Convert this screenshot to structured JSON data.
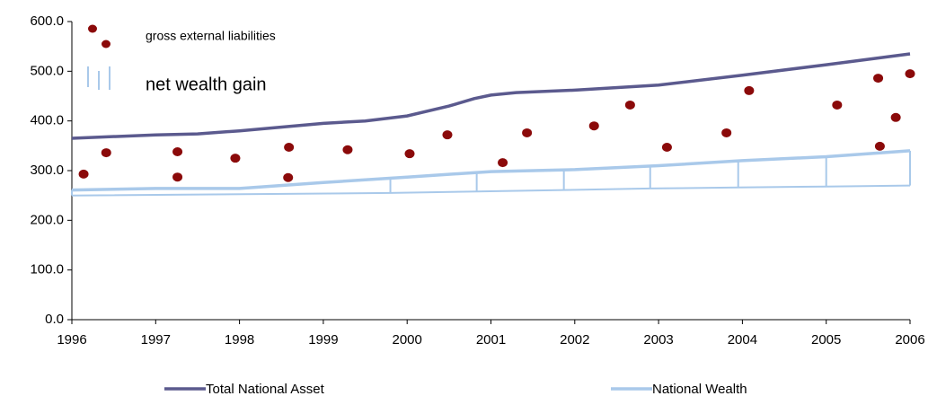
{
  "chart_data": {
    "type": "line",
    "xlim": [
      1996,
      2006
    ],
    "xticks": [
      1996,
      1997,
      1998,
      1999,
      2000,
      2001,
      2002,
      2003,
      2004,
      2005,
      2006
    ],
    "ylim": [
      0,
      600
    ],
    "yticks": [
      {
        "value": 0,
        "label": "0.0"
      },
      {
        "value": 100,
        "label": "100.0"
      },
      {
        "value": 200,
        "label": "200.0"
      },
      {
        "value": 300,
        "label": "300.0"
      },
      {
        "value": 400,
        "label": "400.0"
      },
      {
        "value": 500,
        "label": "500.0"
      },
      {
        "value": 600,
        "label": "600.0"
      }
    ],
    "grid": false,
    "series": [
      {
        "name": "Total National Asset",
        "mark": "line",
        "color": "#5b5a8e",
        "legend": "bottom",
        "x": [
          1996,
          1997,
          1997.5,
          1998,
          1999,
          1999.5,
          2000,
          2000.5,
          2000.8,
          2001,
          2001.3,
          2002,
          2003,
          2004,
          2005,
          2006
        ],
        "values": [
          365,
          372,
          374,
          380,
          395,
          400,
          410,
          430,
          445,
          452,
          457,
          462,
          472,
          492,
          513,
          535
        ]
      },
      {
        "name": "National Wealth",
        "mark": "line",
        "color": "#a9c9ea",
        "legend": "bottom",
        "x": [
          1996,
          1997,
          1998,
          1999,
          2000,
          2001,
          2002,
          2003,
          2004,
          2005,
          2006
        ],
        "values": [
          261,
          264,
          264,
          276,
          287,
          298,
          302,
          310,
          320,
          328,
          340
        ]
      },
      {
        "name": "gross external liabilities",
        "mark": "scatter",
        "color": "#8b0a0a",
        "legend": "top-left",
        "x": [
          1996.14,
          1996.41,
          1997.26,
          1997.26,
          1997.95,
          1998.59,
          1998.58,
          1999.29,
          2000.03,
          2000.48,
          2001.14,
          2001.43,
          2002.23,
          2002.66,
          2003.1,
          2003.81,
          2004.08,
          2005.13,
          2005.64,
          2005.62,
          2005.83,
          2006
        ],
        "values": [
          293,
          336,
          338,
          287,
          325,
          347,
          286,
          342,
          334,
          372,
          316,
          376,
          390,
          432,
          347,
          376,
          461,
          432,
          349,
          486,
          407,
          495
        ]
      },
      {
        "name": "net wealth gain",
        "mark": "range",
        "color": "#a9c9ea",
        "legend": "top-left",
        "x": [
          1996,
          1999.8,
          2000.83,
          2001.87,
          2002.9,
          2003.95,
          2005,
          2006
        ],
        "low": [
          250,
          255,
          258,
          261,
          264,
          266,
          268,
          270
        ],
        "values": [
          261,
          285,
          296,
          301,
          308,
          318,
          326,
          340
        ]
      }
    ]
  }
}
